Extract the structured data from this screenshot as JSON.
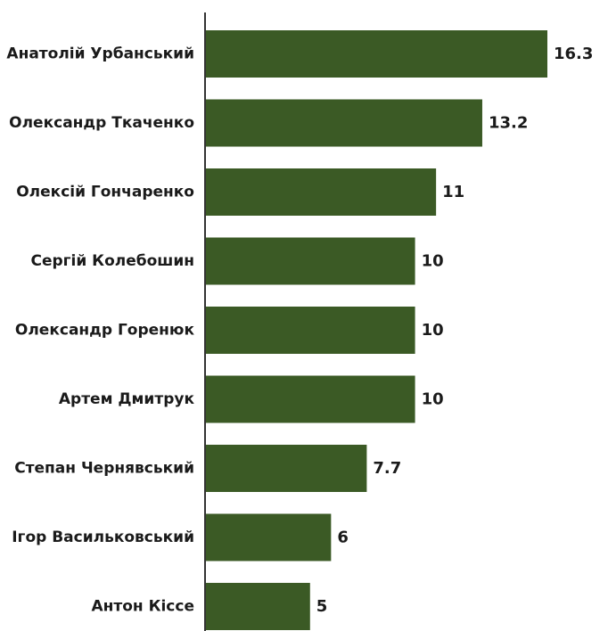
{
  "chart_data": {
    "type": "bar",
    "orientation": "horizontal",
    "title": "",
    "xlabel": "",
    "ylabel": "",
    "categories": [
      "Анатолій Урбанський",
      "Олександр Ткаченко",
      "Олексій Гончаренко",
      "Сергій Колебошин",
      "Олександр Горенюк",
      "Артем Дмитрук",
      "Степан Чернявський",
      "Ігор Васильковський",
      "Антон Кіссе"
    ],
    "values": [
      16.3,
      13.2,
      11,
      10,
      10,
      10,
      7.7,
      6,
      5
    ],
    "value_labels": [
      "16.3",
      "13.2",
      "11",
      "10",
      "10",
      "10",
      "7.7",
      "6",
      "5"
    ],
    "xlim": [
      0,
      16.3
    ],
    "grid": false,
    "legend": "none",
    "colors": {
      "bar": "#3b5a25",
      "axis": "#333333",
      "text": "#1a1a1a"
    }
  }
}
